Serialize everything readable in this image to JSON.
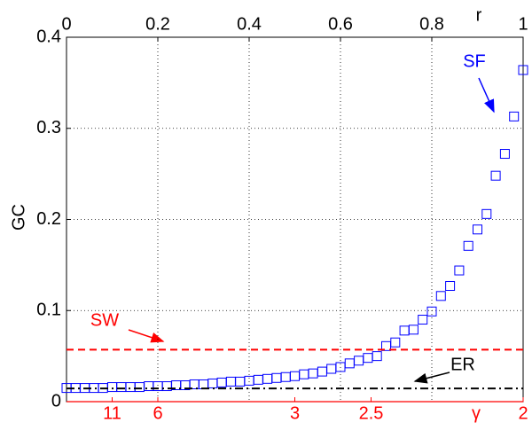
{
  "chart_data": {
    "type": "scatter",
    "xlabel": "r",
    "ylabel": "GC",
    "x2label": "γ",
    "xlim": [
      0,
      1
    ],
    "ylim": [
      0,
      0.4
    ],
    "xticks": [
      0,
      0.2,
      0.4,
      0.6,
      0.8,
      1
    ],
    "yticks": [
      0,
      0.1,
      0.2,
      0.3,
      0.4
    ],
    "x2ticks": [
      {
        "value": 0.1,
        "label": "11"
      },
      {
        "value": 0.2,
        "label": "6"
      },
      {
        "value": 0.5,
        "label": "3"
      },
      {
        "value": 0.667,
        "label": "2.5"
      },
      {
        "value": 1,
        "label": "2"
      }
    ],
    "x2color": "#ff0000",
    "grid": true,
    "series": [
      {
        "name": "SF",
        "color": "#0000ff",
        "marker": "square",
        "x": [
          0,
          0.02,
          0.04,
          0.06,
          0.08,
          0.1,
          0.12,
          0.14,
          0.16,
          0.18,
          0.2,
          0.22,
          0.24,
          0.26,
          0.28,
          0.3,
          0.32,
          0.34,
          0.36,
          0.38,
          0.4,
          0.42,
          0.44,
          0.46,
          0.48,
          0.5,
          0.52,
          0.54,
          0.56,
          0.58,
          0.6,
          0.62,
          0.64,
          0.66,
          0.68,
          0.7,
          0.72,
          0.74,
          0.76,
          0.78,
          0.8,
          0.82,
          0.84,
          0.86,
          0.88,
          0.9,
          0.92,
          0.94,
          0.96,
          0.98,
          1
        ],
        "values": [
          0.015,
          0.015,
          0.015,
          0.015,
          0.015,
          0.016,
          0.016,
          0.016,
          0.016,
          0.017,
          0.017,
          0.017,
          0.018,
          0.018,
          0.019,
          0.019,
          0.02,
          0.021,
          0.022,
          0.022,
          0.023,
          0.024,
          0.025,
          0.026,
          0.027,
          0.028,
          0.03,
          0.031,
          0.033,
          0.036,
          0.038,
          0.042,
          0.045,
          0.048,
          0.05,
          0.061,
          0.065,
          0.078,
          0.079,
          0.09,
          0.099,
          0.116,
          0.127,
          0.144,
          0.171,
          0.189,
          0.206,
          0.248,
          0.272,
          0.313,
          0.364
        ]
      },
      {
        "name": "SW",
        "color": "#ff0000",
        "line": "dashed",
        "x": [
          0,
          1
        ],
        "values": [
          0.057,
          0.057
        ]
      },
      {
        "name": "ER",
        "color": "#000000",
        "line": "dashdot",
        "x": [
          0,
          1
        ],
        "values": [
          0.0145,
          0.0145
        ]
      }
    ]
  }
}
